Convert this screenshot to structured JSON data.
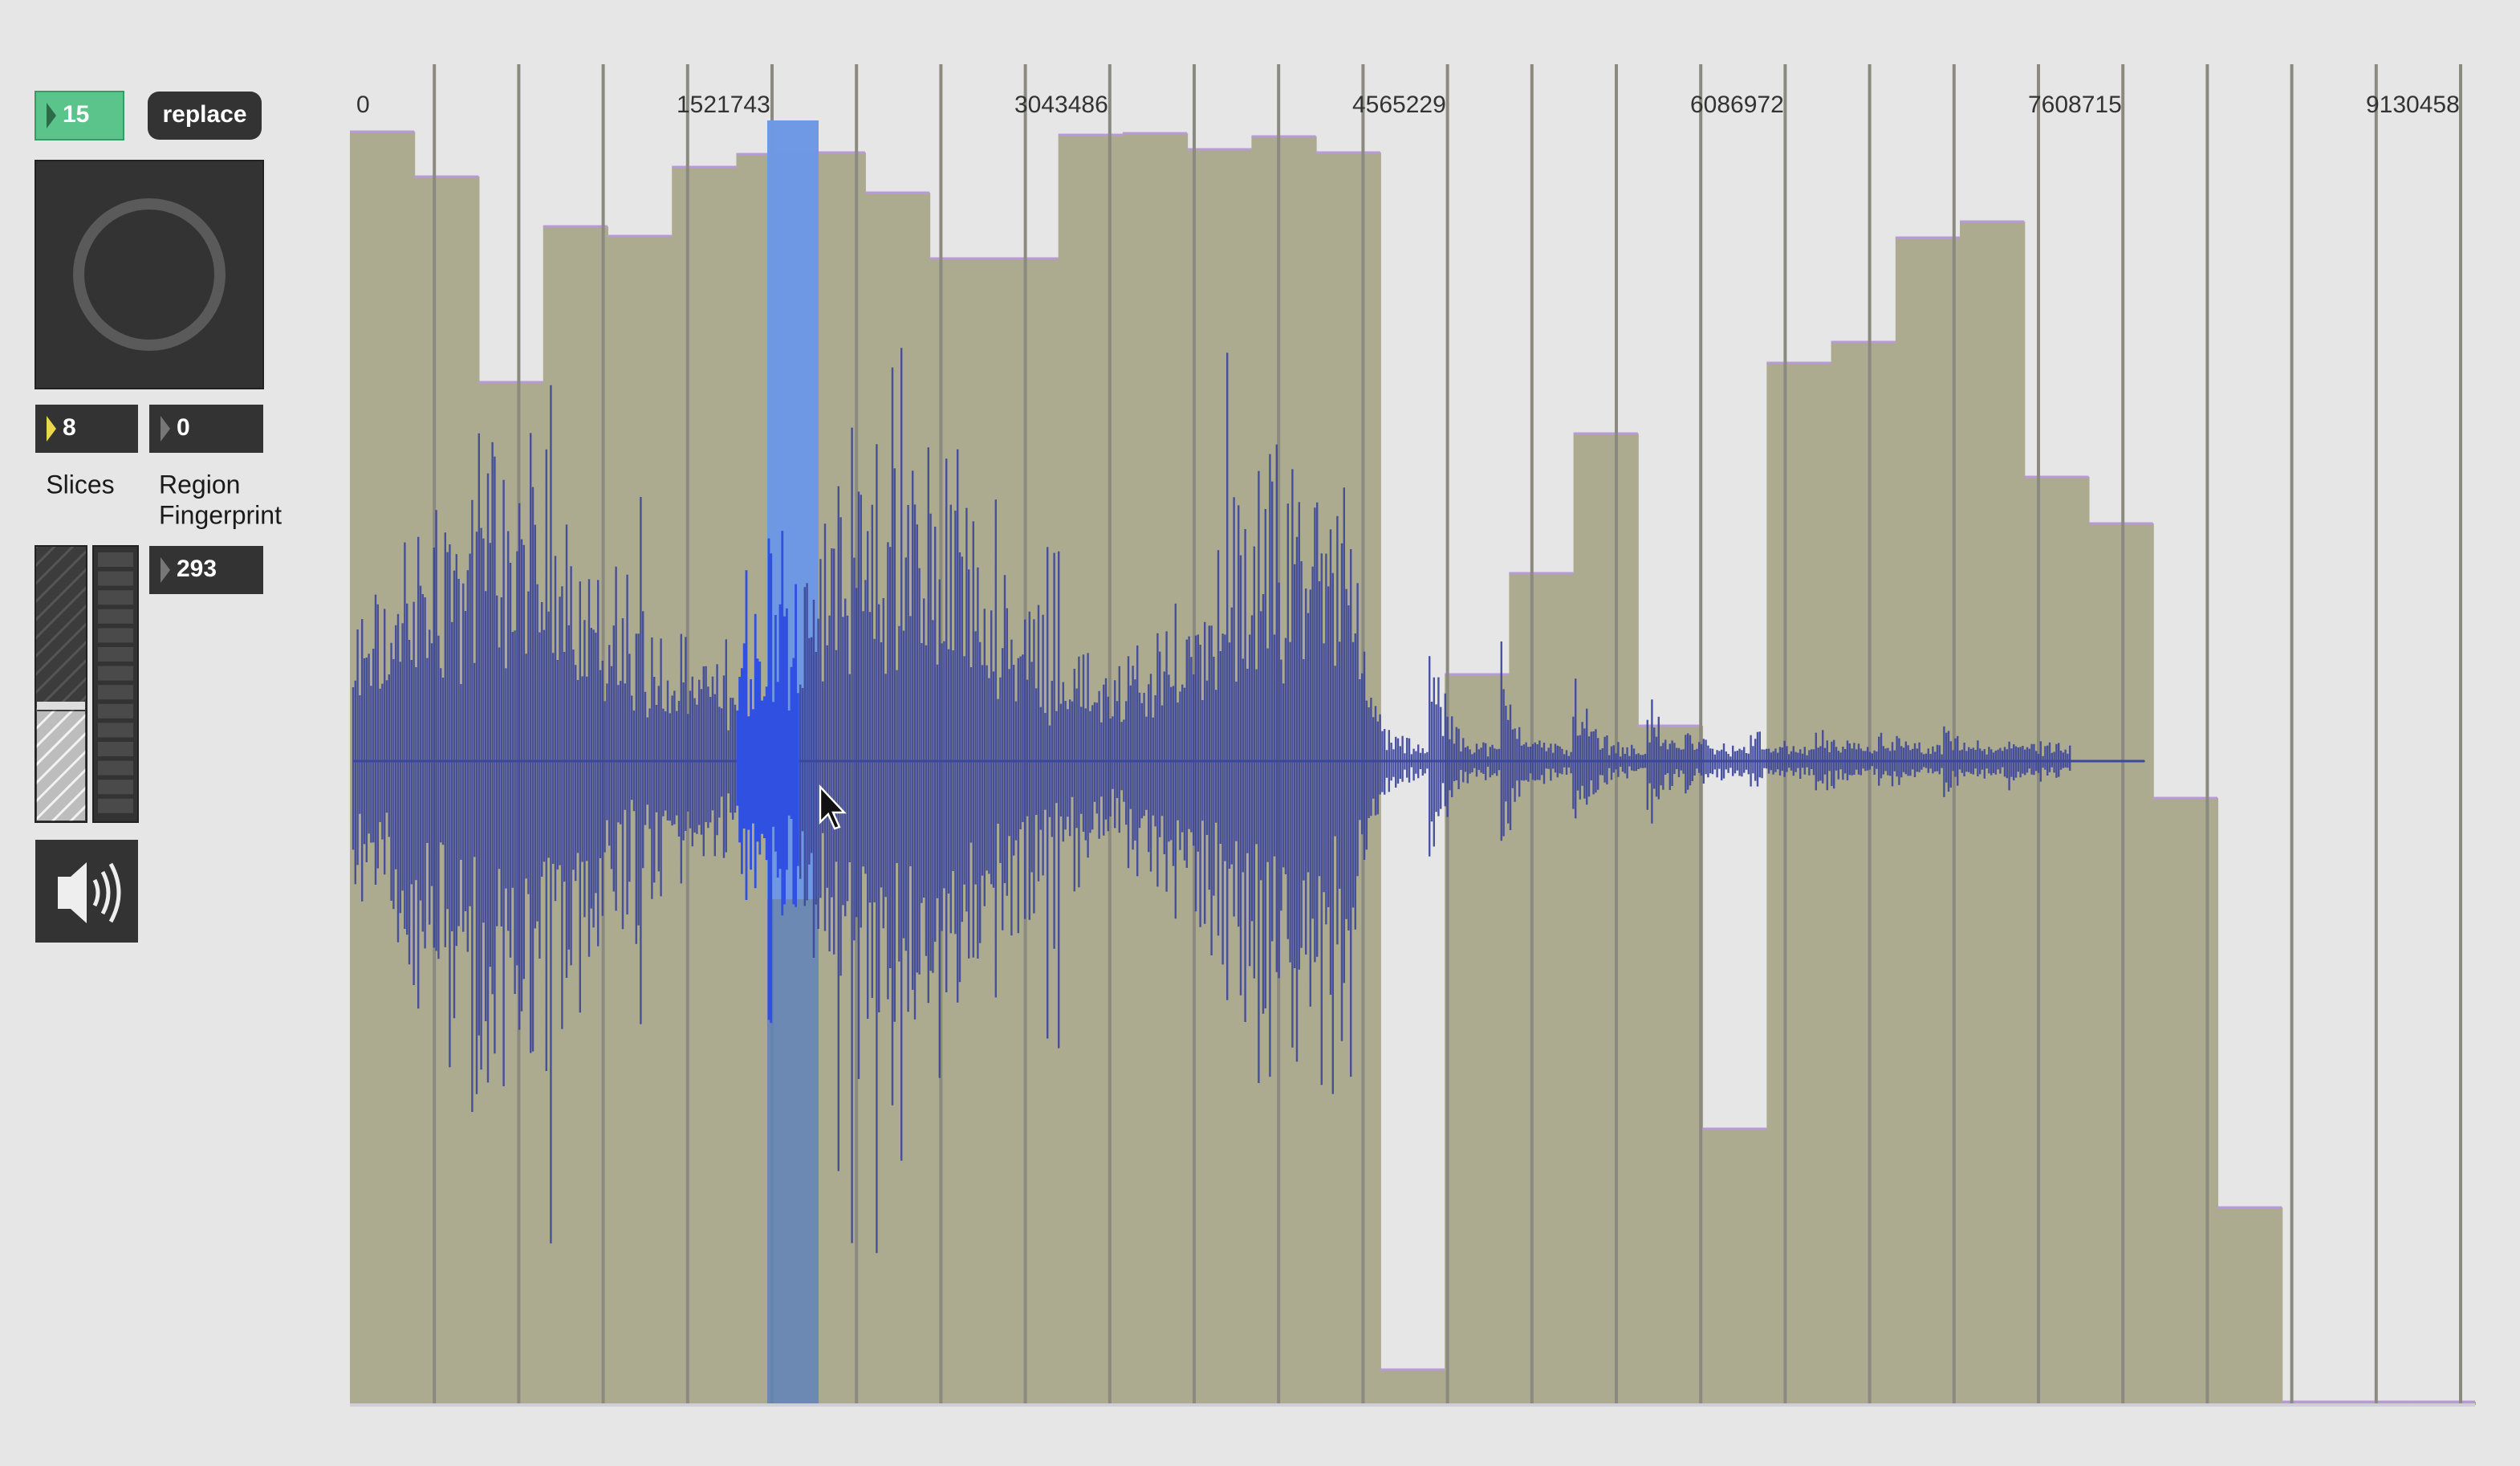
{
  "controls": {
    "count": 15,
    "mode_button": "replace",
    "slices": 8,
    "region": 0,
    "slices_label": "Slices",
    "region_label": [
      "Region",
      "Fingerprint"
    ],
    "fingerprint": 293
  },
  "ruler": {
    "labels": [
      0,
      1521743,
      3043486,
      4565229,
      6086972,
      7608715,
      9130458
    ]
  }
}
